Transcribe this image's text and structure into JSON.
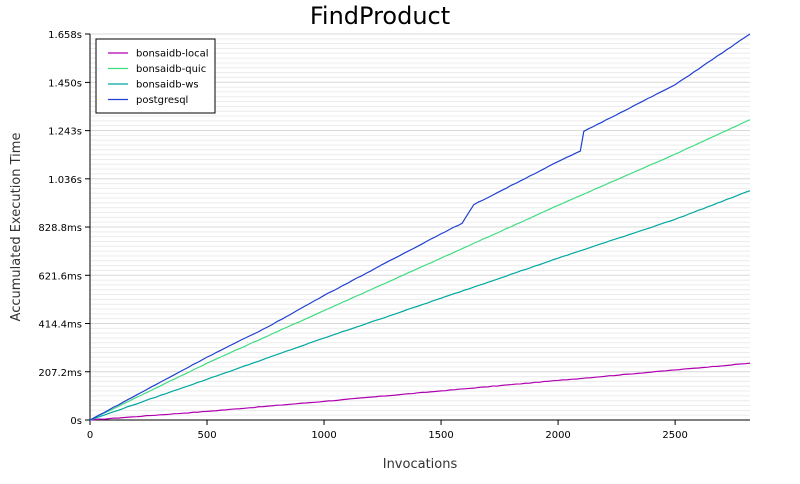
{
  "chart_data": {
    "type": "line",
    "title": "FindProduct",
    "xlabel": "Invocations",
    "ylabel": "Accumulated Execution Time",
    "xlim": [
      0,
      2820
    ],
    "ylim": [
      0,
      1.658
    ],
    "x_ticks": [
      0,
      500,
      1000,
      1500,
      2000,
      2500
    ],
    "x_tick_labels": [
      "0",
      "500",
      "1000",
      "1500",
      "2000",
      "2500"
    ],
    "y_ticks": [
      0,
      0.2072,
      0.4144,
      0.6216,
      0.8288,
      1.036,
      1.243,
      1.45,
      1.658
    ],
    "y_tick_labels": [
      "0s",
      "207.2ms",
      "414.4ms",
      "621.6ms",
      "828.8ms",
      "1.036s",
      "1.243s",
      "1.450s",
      "1.658s"
    ],
    "grid": true,
    "legend_position": "top-left",
    "series": [
      {
        "name": "bonsaidb-local",
        "color": "#b000b0",
        "x": [
          0,
          500,
          1000,
          1500,
          2000,
          2500,
          2820
        ],
        "y": [
          0,
          0.037,
          0.08,
          0.125,
          0.17,
          0.215,
          0.244
        ]
      },
      {
        "name": "bonsaidb-quic",
        "color": "#40dc80",
        "x": [
          0,
          500,
          1000,
          1500,
          2000,
          2500,
          2820
        ],
        "y": [
          0,
          0.244,
          0.47,
          0.695,
          0.922,
          1.142,
          1.29
        ]
      },
      {
        "name": "bonsaidb-ws",
        "color": "#00a8a0",
        "x": [
          0,
          500,
          1000,
          1500,
          2000,
          2500,
          2820
        ],
        "y": [
          0,
          0.175,
          0.352,
          0.523,
          0.695,
          0.862,
          0.985
        ]
      },
      {
        "name": "postgresql",
        "color": "#2040d0",
        "x": [
          0,
          500,
          760,
          1000,
          1500,
          1590,
          1640,
          2000,
          2095,
          2110,
          2500,
          2820
        ],
        "y": [
          0,
          0.27,
          0.4,
          0.535,
          0.8,
          0.845,
          0.925,
          1.11,
          1.155,
          1.24,
          1.44,
          1.658
        ]
      }
    ]
  }
}
